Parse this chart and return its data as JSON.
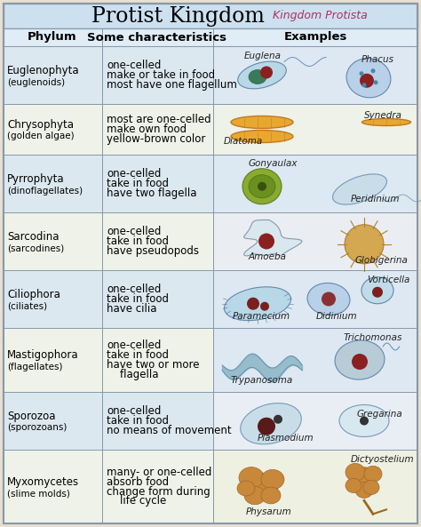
{
  "title": "Protist Kingdom",
  "subtitle": "Kingdom Protista",
  "header": [
    "Phylum",
    "Some characteristics",
    "Examples"
  ],
  "rows": [
    {
      "phylum": "Euglenophyta\n(euglenoids)",
      "characteristics": "one-celled\nmake or take in food\nmost have one flagellum",
      "examples": [
        "Euglena",
        "Phacus"
      ],
      "bg": "#dce8f0",
      "illus_bg": "#dde8f2"
    },
    {
      "phylum": "Chrysophyta\n(golden algae)",
      "characteristics": "most are one-celled\nmake own food\nyellow-brown color",
      "examples": [
        "Synedra",
        "Diatoma"
      ],
      "bg": "#eef2e8",
      "illus_bg": "#eef2e8"
    },
    {
      "phylum": "Pyrrophyta\n(dinoflagellates)",
      "characteristics": "one-celled\ntake in food\nhave two flagella",
      "examples": [
        "Gonyaulax",
        "Peridinium"
      ],
      "bg": "#dce8f0",
      "illus_bg": "#dce8f2"
    },
    {
      "phylum": "Sarcodina\n(sarcodines)",
      "characteristics": "one-celled\ntake in food\nhave pseudopods",
      "examples": [
        "Amoeba",
        "Globigerina"
      ],
      "bg": "#eef2e8",
      "illus_bg": "#eaeef2"
    },
    {
      "phylum": "Ciliophora\n(ciliates)",
      "characteristics": "one-celled\ntake in food\nhave cilia",
      "examples": [
        "Paramecium",
        "Didinium",
        "Vorticella"
      ],
      "bg": "#dce8f0",
      "illus_bg": "#dde8f2"
    },
    {
      "phylum": "Mastigophora\n(flagellates)",
      "characteristics": "one-celled\ntake in food\nhave two or more\n    flagella",
      "examples": [
        "Trypanosoma",
        "Trichomonas"
      ],
      "bg": "#eef2e8",
      "illus_bg": "#dde8f2"
    },
    {
      "phylum": "Sporozoa\n(sporozoans)",
      "characteristics": "one-celled\ntake in food\nno means of movement",
      "examples": [
        "Plasmodium",
        "Gregarina"
      ],
      "bg": "#dce8f0",
      "illus_bg": "#e8eef4"
    },
    {
      "phylum": "Myxomycetes\n(slime molds)",
      "characteristics": "many- or one-celled\nabsorb food\nchange form during\n    life cycle",
      "examples": [
        "Physarum",
        "Dictyostelium"
      ],
      "bg": "#eef2e8",
      "illus_bg": "#eef0e2"
    }
  ],
  "title_bg": "#cce0f0",
  "header_bg": "#e0ecf6",
  "border_color": "#8899aa",
  "title_fontsize": 17,
  "subtitle_fontsize": 9,
  "header_fontsize": 9.5,
  "cell_fontsize": 8.5,
  "example_fontsize": 7.5,
  "fig_bg": "#e8e0d0"
}
